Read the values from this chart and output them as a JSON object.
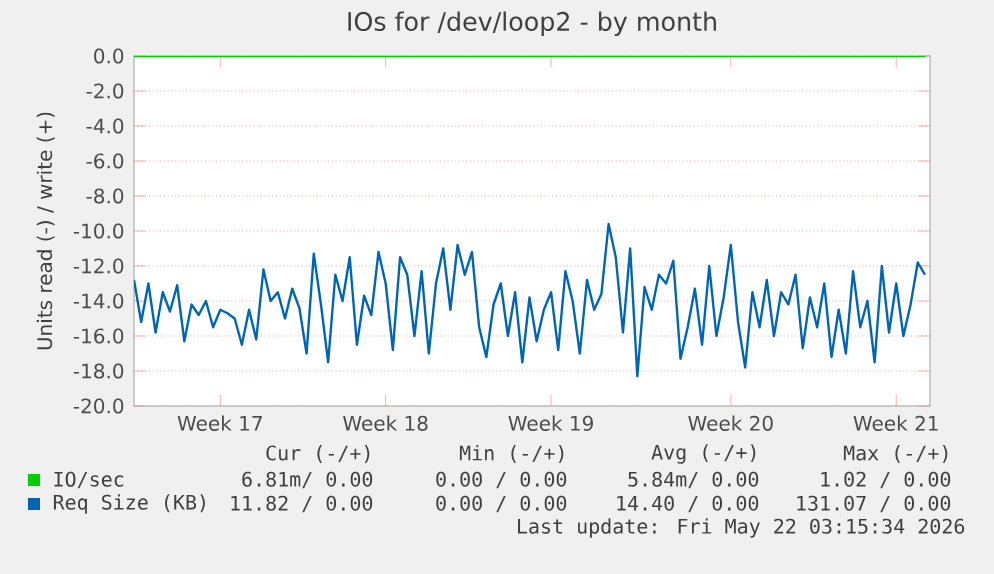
{
  "chart_data": {
    "type": "line",
    "title": "IOs for /dev/loop2 - by month",
    "ylabel": "Units read (-) / write (+)",
    "categories": [
      null,
      null,
      null,
      null,
      null,
      null,
      null,
      null,
      null,
      null,
      null,
      null,
      "Week 17",
      null,
      null,
      null,
      null,
      null,
      null,
      null,
      null,
      null,
      null,
      null,
      null,
      null,
      null,
      null,
      null,
      null,
      null,
      null,
      null,
      null,
      null,
      "Week 18",
      null,
      null,
      null,
      null,
      null,
      null,
      null,
      null,
      null,
      null,
      null,
      null,
      null,
      null,
      null,
      null,
      null,
      null,
      null,
      null,
      null,
      null,
      "Week 19",
      null,
      null,
      null,
      null,
      null,
      null,
      null,
      null,
      null,
      null,
      null,
      null,
      null,
      null,
      null,
      null,
      null,
      null,
      null,
      null,
      null,
      null,
      null,
      null,
      "Week 20",
      null,
      null,
      null,
      null,
      null,
      null,
      null,
      null,
      null,
      null,
      null,
      null,
      null,
      null,
      null,
      null,
      null,
      null,
      null,
      null,
      null,
      null,
      "Week 21",
      null,
      null,
      null,
      null
    ],
    "ylim": [
      -20,
      0
    ],
    "yticks": [
      {
        "value": 0,
        "label": "0.0"
      },
      {
        "value": -2,
        "label": "-2.0"
      },
      {
        "value": -4,
        "label": "-4.0"
      },
      {
        "value": -6,
        "label": "-6.0"
      },
      {
        "value": -8,
        "label": "-8.0"
      },
      {
        "value": -10,
        "label": "-10.0"
      },
      {
        "value": -12,
        "label": "-12.0"
      },
      {
        "value": -14,
        "label": "-14.0"
      },
      {
        "value": -16,
        "label": "-16.0"
      },
      {
        "value": -18,
        "label": "-18.0"
      },
      {
        "value": -20,
        "label": "-20.0"
      }
    ],
    "grid": "y",
    "legend": "bottom",
    "series": [
      {
        "name": "IO/sec",
        "color": "#00cc00",
        "values": [
          0,
          0,
          0,
          0,
          0,
          0,
          0,
          0,
          0,
          0,
          0,
          0,
          0,
          0,
          0,
          0,
          0,
          0,
          0,
          0,
          0,
          0,
          0,
          0,
          0,
          0,
          0,
          0,
          0,
          0,
          0,
          0,
          0,
          0,
          0,
          0,
          0,
          0,
          0,
          0,
          0,
          0,
          0,
          0,
          0,
          0,
          0,
          0,
          0,
          0,
          0,
          0,
          0,
          0,
          0,
          0,
          0,
          0,
          0,
          0,
          0,
          0,
          0,
          0,
          0,
          0,
          0,
          0,
          0,
          0,
          0,
          0,
          0,
          0,
          0,
          0,
          0,
          0,
          0,
          0,
          0,
          0,
          0,
          0,
          0,
          0,
          0,
          0,
          0,
          0,
          0,
          0,
          0,
          0,
          0,
          0,
          0,
          0,
          0,
          0,
          0,
          0,
          0,
          0,
          0,
          0,
          0,
          0,
          0,
          0,
          0
        ]
      },
      {
        "name": "Req Size (KB)",
        "color": "#0066b3",
        "values": [
          -12.8,
          -15.2,
          -13.0,
          -15.8,
          -13.5,
          -14.6,
          -13.1,
          -16.3,
          -14.2,
          -14.8,
          -14.0,
          -15.5,
          -14.5,
          -14.7,
          -15.0,
          -16.5,
          -14.5,
          -16.2,
          -12.2,
          -14.0,
          -13.5,
          -15.0,
          -13.3,
          -14.4,
          -17.0,
          -11.3,
          -14.2,
          -17.5,
          -12.5,
          -14.0,
          -11.5,
          -16.5,
          -13.7,
          -14.8,
          -11.2,
          -13.0,
          -16.8,
          -11.5,
          -12.5,
          -16.0,
          -12.3,
          -17.0,
          -13.0,
          -11.0,
          -14.5,
          -10.8,
          -12.5,
          -11.2,
          -15.5,
          -17.2,
          -14.2,
          -13.0,
          -16.0,
          -13.5,
          -17.5,
          -13.8,
          -16.3,
          -14.5,
          -13.5,
          -16.8,
          -12.3,
          -14.0,
          -17.0,
          -12.8,
          -14.5,
          -13.6,
          -9.6,
          -11.5,
          -15.8,
          -11.0,
          -18.3,
          -13.2,
          -14.5,
          -12.5,
          -13.0,
          -11.7,
          -17.3,
          -15.5,
          -13.3,
          -16.5,
          -12.0,
          -16.0,
          -13.8,
          -10.8,
          -15.2,
          -17.8,
          -13.5,
          -15.5,
          -12.8,
          -16.0,
          -13.5,
          -14.2,
          -12.5,
          -16.7,
          -13.8,
          -15.5,
          -13.0,
          -17.2,
          -14.5,
          -17.0,
          -12.3,
          -15.5,
          -14.0,
          -17.5,
          -12.0,
          -15.8,
          -13.0,
          -16.0,
          -14.2,
          -11.8,
          -12.5
        ]
      }
    ],
    "annotations": [
      "Cur (-/+)",
      "Min (-/+)",
      "Avg (-/+)",
      "Max (-/+)",
      "6.81m/ 0.00",
      "0.00 / 0.00",
      "5.84m/ 0.00",
      "1.02 / 0.00",
      "11.82 / 0.00",
      "0.00 / 0.00",
      "14.40 / 0.00",
      "131.07 / 0.00",
      "Last update: Fri May 22 03:15:34 2026"
    ]
  }
}
